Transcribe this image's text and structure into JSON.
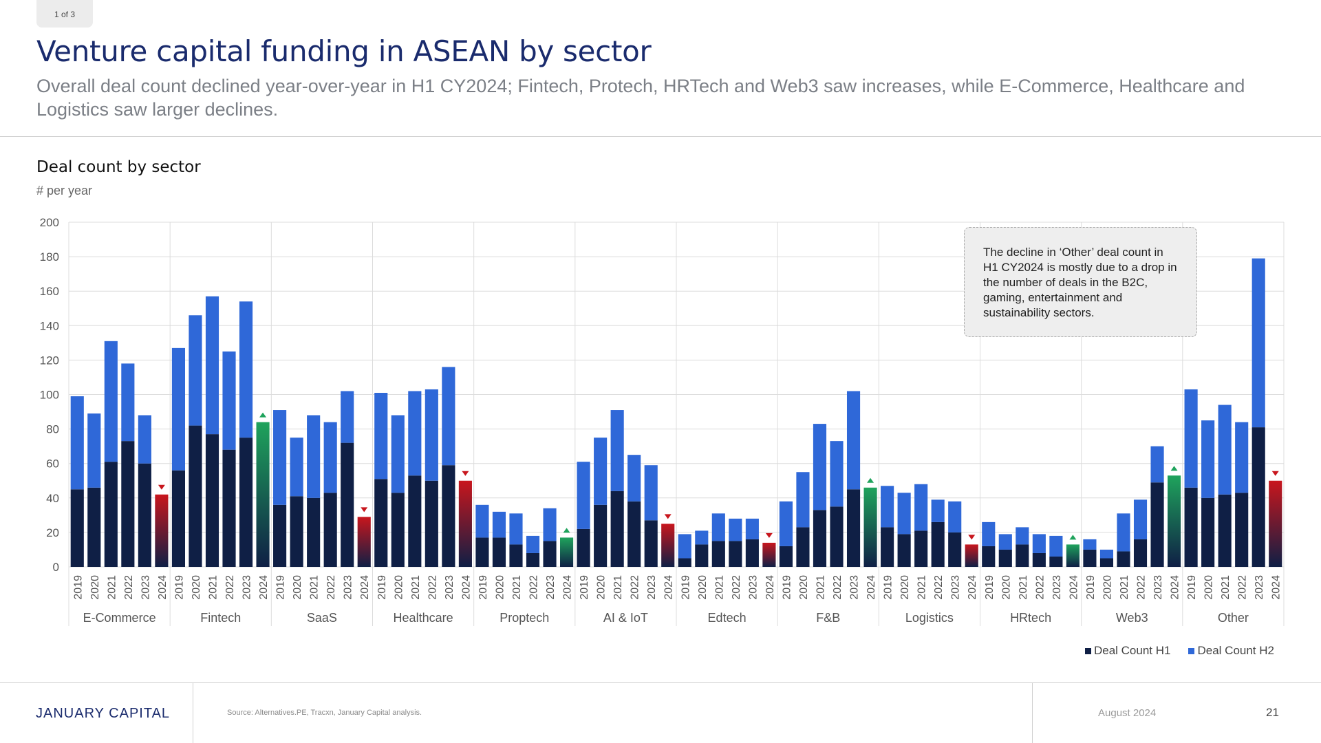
{
  "page_tag": "1 of 3",
  "title": "Venture capital funding in ASEAN by sector",
  "subtitle": "Overall deal count declined year-over-year in H1 CY2024; Fintech, Protech, HRTech and Web3 saw increases, while E-Commerce, Healthcare and Logistics saw larger declines.",
  "chart_title": "Deal count by sector",
  "chart_unit": "# per year",
  "annotation": "The decline in ‘Other’ deal count in H1 CY2024 is mostly due to a drop in the number of deals in the B2C, gaming, entertainment and sustainability sectors.",
  "legend": {
    "h1": "Deal Count H1",
    "h2": "Deal Count H2"
  },
  "footer": {
    "brand": "JANUARY CAPITAL",
    "source": "Source: Alternatives.PE, Tracxn, January Capital analysis.",
    "date": "August 2024",
    "page_number": "21"
  },
  "colors": {
    "h1": "#0f1f45",
    "h2": "#2f68d8",
    "increase": "#1fa35c",
    "decrease": "#c8161d",
    "grid": "#dcdcdc",
    "axis_text": "#555555"
  },
  "chart_data": {
    "type": "bar",
    "stacked": true,
    "title": "Deal count by sector",
    "ylabel": "# per year",
    "ylim": [
      0,
      200
    ],
    "yticks": [
      0,
      20,
      40,
      60,
      80,
      100,
      120,
      140,
      160,
      180,
      200
    ],
    "years": [
      "2019",
      "2020",
      "2021",
      "2022",
      "2023",
      "2024"
    ],
    "series": [
      {
        "name": "Deal Count H1",
        "color": "#0f1f45"
      },
      {
        "name": "Deal Count H2",
        "color": "#2f68d8"
      }
    ],
    "groups": [
      {
        "name": "E-Commerce",
        "h1": [
          45,
          46,
          61,
          73,
          60,
          42
        ],
        "h2": [
          54,
          43,
          70,
          45,
          28,
          0
        ],
        "change": "down"
      },
      {
        "name": "Fintech",
        "h1": [
          56,
          82,
          77,
          68,
          75,
          84
        ],
        "h2": [
          71,
          64,
          80,
          57,
          79,
          0
        ],
        "change": "up"
      },
      {
        "name": "SaaS",
        "h1": [
          36,
          41,
          40,
          43,
          72,
          29
        ],
        "h2": [
          55,
          34,
          48,
          41,
          30,
          0
        ],
        "change": "down"
      },
      {
        "name": "Healthcare",
        "h1": [
          51,
          43,
          53,
          50,
          59,
          50
        ],
        "h2": [
          50,
          45,
          49,
          53,
          57,
          0
        ],
        "change": "down"
      },
      {
        "name": "Proptech",
        "h1": [
          17,
          17,
          13,
          8,
          15,
          17
        ],
        "h2": [
          19,
          15,
          18,
          10,
          19,
          0
        ],
        "change": "up"
      },
      {
        "name": "AI & IoT",
        "h1": [
          22,
          36,
          44,
          38,
          27,
          25
        ],
        "h2": [
          39,
          39,
          47,
          27,
          32,
          0
        ],
        "change": "down"
      },
      {
        "name": "Edtech",
        "h1": [
          5,
          13,
          15,
          15,
          16,
          14
        ],
        "h2": [
          14,
          8,
          16,
          13,
          12,
          0
        ],
        "change": "down"
      },
      {
        "name": "F&B",
        "h1": [
          12,
          23,
          33,
          35,
          45,
          46
        ],
        "h2": [
          26,
          32,
          50,
          38,
          57,
          0
        ],
        "change": "up"
      },
      {
        "name": "Logistics",
        "h1": [
          23,
          19,
          21,
          26,
          20,
          13
        ],
        "h2": [
          24,
          24,
          27,
          13,
          18,
          0
        ],
        "change": "down"
      },
      {
        "name": "HRtech",
        "h1": [
          12,
          10,
          13,
          8,
          6,
          13
        ],
        "h2": [
          14,
          9,
          10,
          11,
          12,
          0
        ],
        "change": "up"
      },
      {
        "name": "Web3",
        "h1": [
          10,
          5,
          9,
          16,
          49,
          53
        ],
        "h2": [
          6,
          5,
          22,
          23,
          21,
          0
        ],
        "change": "up"
      },
      {
        "name": "Other",
        "h1": [
          46,
          40,
          42,
          43,
          81,
          50
        ],
        "h2": [
          57,
          45,
          52,
          41,
          98,
          0
        ],
        "change": "down"
      }
    ],
    "grid": true,
    "legend_position": "bottom-right"
  }
}
